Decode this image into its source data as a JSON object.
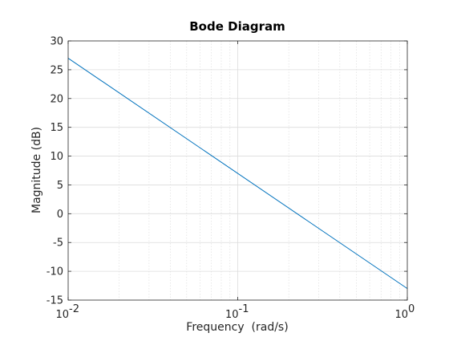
{
  "chart_data": {
    "type": "line",
    "title": "Bode Diagram",
    "xlabel": "Frequency  (rad/s)",
    "ylabel": "Magnitude (dB)",
    "x_scale": "log",
    "xlim": [
      0.01,
      1
    ],
    "ylim": [
      -15,
      30
    ],
    "grid": true,
    "minor_grid": true,
    "x_ticks": [
      {
        "value": 0.01,
        "base": "10",
        "exp": "-2"
      },
      {
        "value": 0.1,
        "base": "10",
        "exp": "-1"
      },
      {
        "value": 1,
        "base": "10",
        "exp": "0"
      }
    ],
    "y_ticks": [
      30,
      25,
      20,
      15,
      10,
      5,
      0,
      -5,
      -10,
      -15
    ],
    "series": [
      {
        "color": "#0072BD",
        "x": [
          0.01,
          1
        ],
        "y": [
          27.0,
          -13.0
        ]
      }
    ]
  }
}
